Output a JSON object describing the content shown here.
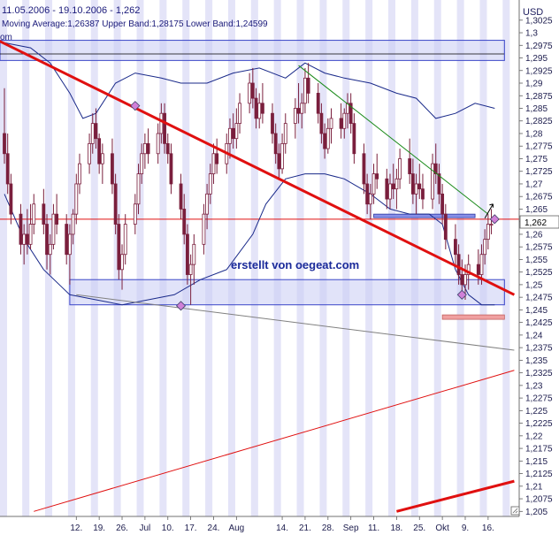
{
  "header": {
    "date_range": "11.05.2006 - 19.10.2006 - 1,262",
    "indicator": "Moving Average:1,26387 Upper Band:1,28175 Lower Band:1,24599",
    "indicator_suffix": "om"
  },
  "currency": "USD",
  "watermark": "erstellt von oegeat.com",
  "current_price_label": "1,262",
  "colors": {
    "candle": "#7a1f3d",
    "band": "#1a2a8a",
    "trend_main": "#e01010",
    "trend_thin": "#e01010",
    "trend_upper": "#1a8a1a",
    "trend_gray": "#808080",
    "zone_fill": "#c8ccf4",
    "zone_stroke": "#3a46c8",
    "stripe": "#e4e4f8",
    "marker": "#d080d8",
    "support_pink": "#f0a0a0"
  },
  "chart_data": {
    "type": "candlestick",
    "title": "",
    "xlabel": "",
    "ylabel": "USD",
    "ylim": [
      1.204,
      1.3065
    ],
    "grid": false,
    "y_ticks": [
      "1,3025",
      "1,3",
      "1,2975",
      "1,295",
      "1,2925",
      "1,29",
      "1,2875",
      "1,285",
      "1,2825",
      "1,28",
      "1,2775",
      "1,275",
      "1,2725",
      "1,27",
      "1,2675",
      "1,265",
      "1,2625",
      "1,26",
      "1,2575",
      "1,255",
      "1,2525",
      "1,25",
      "1,2475",
      "1,245",
      "1,2425",
      "1,24",
      "1,2375",
      "1,235",
      "1,2325",
      "1,23",
      "1,2275",
      "1,225",
      "1,2225",
      "1,22",
      "1,2175",
      "1,215",
      "1,2125",
      "1,21",
      "1,2075",
      "1,205"
    ],
    "x_labels": [
      "12.",
      "19.",
      "26.",
      "Jul",
      "10.",
      "17.",
      "24.",
      "Aug",
      "14.",
      "21.",
      "28.",
      "Sep",
      "11.",
      "18.",
      "25.",
      "Okt",
      "9.",
      "16."
    ],
    "x_label_days": [
      22,
      29,
      36,
      43,
      50,
      57,
      64,
      71,
      85,
      92,
      99,
      106,
      113,
      120,
      127,
      134,
      141,
      148
    ],
    "current_price": 1.262,
    "reference_line": 1.263,
    "moving_average_last": 1.26387,
    "upper_band_last": 1.28175,
    "lower_band_last": 1.24599,
    "candles": [
      {
        "d": 0,
        "o": 1.28,
        "h": 1.289,
        "l": 1.274,
        "c": 1.276
      },
      {
        "d": 1,
        "o": 1.276,
        "h": 1.28,
        "l": 1.268,
        "c": 1.27
      },
      {
        "d": 2,
        "o": 1.27,
        "h": 1.272,
        "l": 1.262,
        "c": 1.264
      },
      {
        "d": 5,
        "o": 1.264,
        "h": 1.266,
        "l": 1.256,
        "c": 1.258
      },
      {
        "d": 6,
        "o": 1.258,
        "h": 1.262,
        "l": 1.254,
        "c": 1.26
      },
      {
        "d": 7,
        "o": 1.26,
        "h": 1.265,
        "l": 1.256,
        "c": 1.258
      },
      {
        "d": 8,
        "o": 1.258,
        "h": 1.266,
        "l": 1.257,
        "c": 1.262
      },
      {
        "d": 9,
        "o": 1.262,
        "h": 1.268,
        "l": 1.26,
        "c": 1.266
      },
      {
        "d": 12,
        "o": 1.266,
        "h": 1.269,
        "l": 1.26,
        "c": 1.262
      },
      {
        "d": 13,
        "o": 1.262,
        "h": 1.264,
        "l": 1.253,
        "c": 1.256
      },
      {
        "d": 14,
        "o": 1.256,
        "h": 1.26,
        "l": 1.252,
        "c": 1.258
      },
      {
        "d": 15,
        "o": 1.258,
        "h": 1.266,
        "l": 1.257,
        "c": 1.264
      },
      {
        "d": 16,
        "o": 1.264,
        "h": 1.268,
        "l": 1.26,
        "c": 1.262
      },
      {
        "d": 19,
        "o": 1.262,
        "h": 1.264,
        "l": 1.254,
        "c": 1.256
      },
      {
        "d": 20,
        "o": 1.256,
        "h": 1.262,
        "l": 1.25,
        "c": 1.26
      },
      {
        "d": 21,
        "o": 1.26,
        "h": 1.265,
        "l": 1.258,
        "c": 1.264
      },
      {
        "d": 22,
        "o": 1.264,
        "h": 1.272,
        "l": 1.262,
        "c": 1.27
      },
      {
        "d": 23,
        "o": 1.27,
        "h": 1.276,
        "l": 1.268,
        "c": 1.274
      },
      {
        "d": 26,
        "o": 1.274,
        "h": 1.28,
        "l": 1.272,
        "c": 1.278
      },
      {
        "d": 27,
        "o": 1.278,
        "h": 1.284,
        "l": 1.276,
        "c": 1.282
      },
      {
        "d": 28,
        "o": 1.282,
        "h": 1.285,
        "l": 1.277,
        "c": 1.279
      },
      {
        "d": 29,
        "o": 1.279,
        "h": 1.28,
        "l": 1.272,
        "c": 1.274
      },
      {
        "d": 30,
        "o": 1.274,
        "h": 1.278,
        "l": 1.27,
        "c": 1.276
      },
      {
        "d": 33,
        "o": 1.276,
        "h": 1.279,
        "l": 1.268,
        "c": 1.27
      },
      {
        "d": 34,
        "o": 1.27,
        "h": 1.272,
        "l": 1.26,
        "c": 1.262
      },
      {
        "d": 35,
        "o": 1.262,
        "h": 1.264,
        "l": 1.251,
        "c": 1.253
      },
      {
        "d": 36,
        "o": 1.253,
        "h": 1.258,
        "l": 1.249,
        "c": 1.256
      },
      {
        "d": 37,
        "o": 1.256,
        "h": 1.264,
        "l": 1.254,
        "c": 1.262
      },
      {
        "d": 40,
        "o": 1.262,
        "h": 1.268,
        "l": 1.26,
        "c": 1.266
      },
      {
        "d": 41,
        "o": 1.266,
        "h": 1.274,
        "l": 1.264,
        "c": 1.272
      },
      {
        "d": 42,
        "o": 1.272,
        "h": 1.278,
        "l": 1.27,
        "c": 1.276
      },
      {
        "d": 43,
        "o": 1.276,
        "h": 1.28,
        "l": 1.273,
        "c": 1.278
      },
      {
        "d": 44,
        "o": 1.278,
        "h": 1.281,
        "l": 1.274,
        "c": 1.276
      },
      {
        "d": 47,
        "o": 1.276,
        "h": 1.282,
        "l": 1.274,
        "c": 1.28
      },
      {
        "d": 48,
        "o": 1.28,
        "h": 1.286,
        "l": 1.278,
        "c": 1.284
      },
      {
        "d": 49,
        "o": 1.284,
        "h": 1.286,
        "l": 1.276,
        "c": 1.278
      },
      {
        "d": 50,
        "o": 1.278,
        "h": 1.28,
        "l": 1.274,
        "c": 1.276
      },
      {
        "d": 51,
        "o": 1.276,
        "h": 1.278,
        "l": 1.268,
        "c": 1.27
      },
      {
        "d": 54,
        "o": 1.27,
        "h": 1.272,
        "l": 1.263,
        "c": 1.265
      },
      {
        "d": 55,
        "o": 1.265,
        "h": 1.268,
        "l": 1.258,
        "c": 1.26
      },
      {
        "d": 56,
        "o": 1.26,
        "h": 1.262,
        "l": 1.25,
        "c": 1.252
      },
      {
        "d": 57,
        "o": 1.252,
        "h": 1.256,
        "l": 1.246,
        "c": 1.254
      },
      {
        "d": 58,
        "o": 1.254,
        "h": 1.26,
        "l": 1.25,
        "c": 1.258
      },
      {
        "d": 61,
        "o": 1.258,
        "h": 1.266,
        "l": 1.256,
        "c": 1.264
      },
      {
        "d": 62,
        "o": 1.264,
        "h": 1.27,
        "l": 1.261,
        "c": 1.268
      },
      {
        "d": 63,
        "o": 1.268,
        "h": 1.274,
        "l": 1.266,
        "c": 1.272
      },
      {
        "d": 64,
        "o": 1.272,
        "h": 1.278,
        "l": 1.27,
        "c": 1.276
      },
      {
        "d": 65,
        "o": 1.276,
        "h": 1.279,
        "l": 1.272,
        "c": 1.274
      },
      {
        "d": 68,
        "o": 1.274,
        "h": 1.28,
        "l": 1.272,
        "c": 1.278
      },
      {
        "d": 69,
        "o": 1.278,
        "h": 1.283,
        "l": 1.275,
        "c": 1.281
      },
      {
        "d": 70,
        "o": 1.281,
        "h": 1.284,
        "l": 1.277,
        "c": 1.279
      },
      {
        "d": 71,
        "o": 1.279,
        "h": 1.285,
        "l": 1.277,
        "c": 1.282
      },
      {
        "d": 72,
        "o": 1.282,
        "h": 1.288,
        "l": 1.28,
        "c": 1.286
      },
      {
        "d": 75,
        "o": 1.286,
        "h": 1.292,
        "l": 1.284,
        "c": 1.29
      },
      {
        "d": 76,
        "o": 1.29,
        "h": 1.293,
        "l": 1.285,
        "c": 1.287
      },
      {
        "d": 77,
        "o": 1.287,
        "h": 1.289,
        "l": 1.281,
        "c": 1.283
      },
      {
        "d": 78,
        "o": 1.283,
        "h": 1.288,
        "l": 1.281,
        "c": 1.286
      },
      {
        "d": 79,
        "o": 1.286,
        "h": 1.29,
        "l": 1.282,
        "c": 1.284
      },
      {
        "d": 82,
        "o": 1.284,
        "h": 1.286,
        "l": 1.278,
        "c": 1.28
      },
      {
        "d": 83,
        "o": 1.28,
        "h": 1.282,
        "l": 1.274,
        "c": 1.276
      },
      {
        "d": 84,
        "o": 1.276,
        "h": 1.278,
        "l": 1.271,
        "c": 1.273
      },
      {
        "d": 85,
        "o": 1.273,
        "h": 1.28,
        "l": 1.272,
        "c": 1.278
      },
      {
        "d": 86,
        "o": 1.278,
        "h": 1.284,
        "l": 1.276,
        "c": 1.282
      },
      {
        "d": 89,
        "o": 1.282,
        "h": 1.287,
        "l": 1.279,
        "c": 1.285
      },
      {
        "d": 90,
        "o": 1.285,
        "h": 1.29,
        "l": 1.282,
        "c": 1.284
      },
      {
        "d": 91,
        "o": 1.284,
        "h": 1.288,
        "l": 1.281,
        "c": 1.286
      },
      {
        "d": 92,
        "o": 1.286,
        "h": 1.293,
        "l": 1.284,
        "c": 1.291
      },
      {
        "d": 93,
        "o": 1.291,
        "h": 1.294,
        "l": 1.286,
        "c": 1.288
      },
      {
        "d": 96,
        "o": 1.288,
        "h": 1.29,
        "l": 1.282,
        "c": 1.284
      },
      {
        "d": 97,
        "o": 1.284,
        "h": 1.286,
        "l": 1.278,
        "c": 1.28
      },
      {
        "d": 98,
        "o": 1.28,
        "h": 1.282,
        "l": 1.275,
        "c": 1.277
      },
      {
        "d": 99,
        "o": 1.277,
        "h": 1.283,
        "l": 1.276,
        "c": 1.281
      },
      {
        "d": 100,
        "o": 1.281,
        "h": 1.285,
        "l": 1.278,
        "c": 1.283
      },
      {
        "d": 103,
        "o": 1.283,
        "h": 1.286,
        "l": 1.279,
        "c": 1.281
      },
      {
        "d": 104,
        "o": 1.281,
        "h": 1.285,
        "l": 1.279,
        "c": 1.284
      },
      {
        "d": 105,
        "o": 1.284,
        "h": 1.288,
        "l": 1.281,
        "c": 1.286
      },
      {
        "d": 106,
        "o": 1.286,
        "h": 1.288,
        "l": 1.28,
        "c": 1.282
      },
      {
        "d": 107,
        "o": 1.282,
        "h": 1.284,
        "l": 1.274,
        "c": 1.276
      },
      {
        "d": 110,
        "o": 1.276,
        "h": 1.278,
        "l": 1.268,
        "c": 1.27
      },
      {
        "d": 111,
        "o": 1.27,
        "h": 1.272,
        "l": 1.264,
        "c": 1.266
      },
      {
        "d": 112,
        "o": 1.266,
        "h": 1.27,
        "l": 1.263,
        "c": 1.268
      },
      {
        "d": 113,
        "o": 1.268,
        "h": 1.274,
        "l": 1.266,
        "c": 1.272
      },
      {
        "d": 114,
        "o": 1.272,
        "h": 1.276,
        "l": 1.269,
        "c": 1.271
      },
      {
        "d": 117,
        "o": 1.271,
        "h": 1.273,
        "l": 1.265,
        "c": 1.267
      },
      {
        "d": 118,
        "o": 1.267,
        "h": 1.272,
        "l": 1.265,
        "c": 1.27
      },
      {
        "d": 119,
        "o": 1.27,
        "h": 1.274,
        "l": 1.267,
        "c": 1.269
      },
      {
        "d": 120,
        "o": 1.269,
        "h": 1.273,
        "l": 1.265,
        "c": 1.271
      },
      {
        "d": 121,
        "o": 1.271,
        "h": 1.277,
        "l": 1.269,
        "c": 1.275
      },
      {
        "d": 124,
        "o": 1.275,
        "h": 1.279,
        "l": 1.27,
        "c": 1.272
      },
      {
        "d": 125,
        "o": 1.272,
        "h": 1.275,
        "l": 1.266,
        "c": 1.268
      },
      {
        "d": 126,
        "o": 1.268,
        "h": 1.272,
        "l": 1.264,
        "c": 1.27
      },
      {
        "d": 127,
        "o": 1.27,
        "h": 1.274,
        "l": 1.267,
        "c": 1.269
      },
      {
        "d": 128,
        "o": 1.269,
        "h": 1.272,
        "l": 1.265,
        "c": 1.267
      },
      {
        "d": 131,
        "o": 1.267,
        "h": 1.276,
        "l": 1.265,
        "c": 1.274
      },
      {
        "d": 132,
        "o": 1.274,
        "h": 1.278,
        "l": 1.27,
        "c": 1.272
      },
      {
        "d": 133,
        "o": 1.272,
        "h": 1.274,
        "l": 1.266,
        "c": 1.268
      },
      {
        "d": 134,
        "o": 1.268,
        "h": 1.27,
        "l": 1.262,
        "c": 1.264
      },
      {
        "d": 135,
        "o": 1.264,
        "h": 1.266,
        "l": 1.257,
        "c": 1.259
      },
      {
        "d": 138,
        "o": 1.259,
        "h": 1.262,
        "l": 1.254,
        "c": 1.256
      },
      {
        "d": 139,
        "o": 1.256,
        "h": 1.258,
        "l": 1.25,
        "c": 1.252
      },
      {
        "d": 140,
        "o": 1.252,
        "h": 1.255,
        "l": 1.248,
        "c": 1.25
      },
      {
        "d": 141,
        "o": 1.25,
        "h": 1.254,
        "l": 1.247,
        "c": 1.252
      },
      {
        "d": 142,
        "o": 1.252,
        "h": 1.256,
        "l": 1.249,
        "c": 1.254
      },
      {
        "d": 145,
        "o": 1.254,
        "h": 1.257,
        "l": 1.25,
        "c": 1.252
      },
      {
        "d": 146,
        "o": 1.252,
        "h": 1.258,
        "l": 1.25,
        "c": 1.256
      },
      {
        "d": 147,
        "o": 1.256,
        "h": 1.261,
        "l": 1.254,
        "c": 1.259
      },
      {
        "d": 148,
        "o": 1.259,
        "h": 1.264,
        "l": 1.257,
        "c": 1.262
      },
      {
        "d": 149,
        "o": 1.262,
        "h": 1.265,
        "l": 1.26,
        "c": 1.262
      }
    ],
    "bollinger_upper": [
      [
        0,
        1.298
      ],
      [
        8,
        1.297
      ],
      [
        14,
        1.294
      ],
      [
        20,
        1.288
      ],
      [
        24,
        1.283
      ],
      [
        28,
        1.284
      ],
      [
        34,
        1.29
      ],
      [
        40,
        1.292
      ],
      [
        48,
        1.291
      ],
      [
        54,
        1.29
      ],
      [
        62,
        1.29
      ],
      [
        70,
        1.292
      ],
      [
        78,
        1.293
      ],
      [
        86,
        1.291
      ],
      [
        92,
        1.294
      ],
      [
        98,
        1.292
      ],
      [
        104,
        1.291
      ],
      [
        112,
        1.29
      ],
      [
        120,
        1.288
      ],
      [
        126,
        1.287
      ],
      [
        132,
        1.283
      ],
      [
        138,
        1.284
      ],
      [
        144,
        1.286
      ],
      [
        150,
        1.285
      ]
    ],
    "bollinger_lower": [
      [
        0,
        1.268
      ],
      [
        6,
        1.259
      ],
      [
        12,
        1.253
      ],
      [
        20,
        1.248
      ],
      [
        28,
        1.247
      ],
      [
        36,
        1.246
      ],
      [
        44,
        1.247
      ],
      [
        52,
        1.248
      ],
      [
        60,
        1.251
      ],
      [
        68,
        1.253
      ],
      [
        76,
        1.26
      ],
      [
        80,
        1.266
      ],
      [
        86,
        1.271
      ],
      [
        92,
        1.272
      ],
      [
        98,
        1.272
      ],
      [
        104,
        1.271
      ],
      [
        112,
        1.268
      ],
      [
        118,
        1.265
      ],
      [
        124,
        1.264
      ],
      [
        130,
        1.264
      ],
      [
        134,
        1.262
      ],
      [
        138,
        1.253
      ],
      [
        142,
        1.248
      ],
      [
        146,
        1.246
      ],
      [
        150,
        1.246
      ]
    ],
    "trend_lines": [
      {
        "name": "main_down",
        "from": [
          -2,
          1.2985
        ],
        "to": [
          156,
          1.248
        ],
        "width": 3
      },
      {
        "name": "upper_resistance",
        "from": [
          90,
          1.2935
        ],
        "to": [
          148,
          1.264
        ],
        "width": 1
      },
      {
        "name": "gray_channel",
        "from": [
          22,
          1.248
        ],
        "to": [
          156,
          1.237
        ],
        "width": 1
      },
      {
        "name": "lower_support",
        "from": [
          9,
          1.205
        ],
        "to": [
          156,
          1.233
        ],
        "width": 1
      },
      {
        "name": "lower_support_thick",
        "from": [
          120,
          1.205
        ],
        "to": [
          156,
          1.211
        ],
        "width": 3
      }
    ],
    "zones": [
      {
        "from_day": -3,
        "to_day": 153,
        "y_low": 1.2945,
        "y_high": 1.2985
      },
      {
        "from_day": 20,
        "to_day": 153,
        "y_low": 1.246,
        "y_high": 1.251
      }
    ],
    "marker_diamonds": [
      [
        40,
        1.2855
      ],
      [
        54,
        1.2458
      ],
      [
        140,
        1.248
      ],
      [
        150,
        1.263
      ]
    ]
  }
}
